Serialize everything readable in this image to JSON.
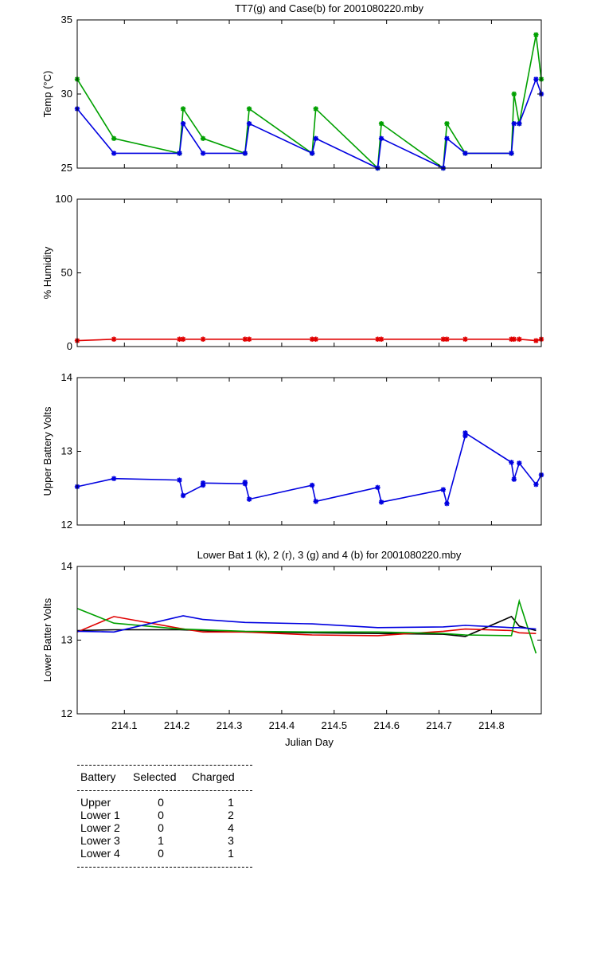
{
  "chart_data": [
    {
      "type": "line",
      "title": "TT7(g) and Case(b) for 2001080220.mby",
      "xlabel": "",
      "ylabel": "Temp  (°C)",
      "xlim": [
        214.01,
        214.895
      ],
      "ylim": [
        25,
        35
      ],
      "yticks": [
        "25",
        "30",
        "35"
      ],
      "markers": true,
      "grid": false,
      "series": [
        {
          "color": "#00a000",
          "x": [
            214.01,
            214.08,
            214.205,
            214.212,
            214.25,
            214.33,
            214.338,
            214.458,
            214.465,
            214.583,
            214.59,
            214.708,
            214.715,
            214.75,
            214.838,
            214.843,
            214.853,
            214.885,
            214.895
          ],
          "y": [
            31,
            27,
            26,
            29,
            27,
            26,
            29,
            26,
            29,
            25,
            28,
            25,
            28,
            26,
            26,
            30,
            28,
            34,
            31
          ]
        },
        {
          "color": "#0000e0",
          "x": [
            214.01,
            214.08,
            214.205,
            214.212,
            214.25,
            214.33,
            214.338,
            214.458,
            214.465,
            214.583,
            214.59,
            214.708,
            214.715,
            214.75,
            214.838,
            214.843,
            214.853,
            214.885,
            214.895
          ],
          "y": [
            29,
            26,
            26,
            28,
            26,
            26,
            28,
            26,
            27,
            25,
            27,
            25,
            27,
            26,
            26,
            28,
            28,
            31,
            30
          ]
        }
      ]
    },
    {
      "type": "line",
      "title": "",
      "xlabel": "",
      "ylabel": "% Humidity",
      "xlim": [
        214.01,
        214.895
      ],
      "ylim": [
        0,
        100
      ],
      "yticks": [
        "0",
        "50",
        "100"
      ],
      "markers": true,
      "grid": false,
      "series": [
        {
          "color": "#e00000",
          "x": [
            214.01,
            214.08,
            214.205,
            214.212,
            214.25,
            214.33,
            214.338,
            214.458,
            214.465,
            214.583,
            214.59,
            214.708,
            214.715,
            214.75,
            214.838,
            214.843,
            214.853,
            214.885,
            214.895
          ],
          "y": [
            4,
            5,
            5,
            5,
            5,
            5,
            5,
            5,
            5,
            5,
            5,
            5,
            5,
            5,
            5,
            5,
            5,
            4,
            5
          ]
        }
      ]
    },
    {
      "type": "line",
      "title": "",
      "xlabel": "",
      "ylabel": "Upper Battery Volts",
      "xlim": [
        214.01,
        214.895
      ],
      "ylim": [
        12,
        14
      ],
      "yticks": [
        "12",
        "13",
        "14"
      ],
      "markers": true,
      "grid": false,
      "series": [
        {
          "color": "#0000e0",
          "x": [
            214.01,
            214.08,
            214.205,
            214.212,
            214.25,
            214.25,
            214.33,
            214.33,
            214.338,
            214.458,
            214.465,
            214.583,
            214.59,
            214.708,
            214.715,
            214.75,
            214.75,
            214.838,
            214.843,
            214.853,
            214.885,
            214.895
          ],
          "y": [
            12.52,
            12.63,
            12.61,
            12.4,
            12.54,
            12.57,
            12.56,
            12.58,
            12.35,
            12.54,
            12.32,
            12.51,
            12.31,
            12.48,
            12.29,
            13.21,
            13.25,
            12.85,
            12.62,
            12.84,
            12.55,
            12.68
          ]
        }
      ]
    },
    {
      "type": "line",
      "title": "Lower Bat 1 (k), 2 (r), 3 (g) and 4 (b) for 2001080220.mby",
      "xlabel": "Julian Day",
      "ylabel": "Lower Batter Volts",
      "xlim": [
        214.01,
        214.895
      ],
      "ylim": [
        12,
        14
      ],
      "yticks": [
        "12",
        "13",
        "14"
      ],
      "xticks": [
        "214.1",
        "214.2",
        "214.3",
        "214.4",
        "214.5",
        "214.6",
        "214.7",
        "214.8"
      ],
      "xtick_values": [
        214.1,
        214.2,
        214.3,
        214.4,
        214.5,
        214.6,
        214.7,
        214.8
      ],
      "markers": false,
      "grid": false,
      "series": [
        {
          "color": "#000000",
          "x": [
            214.01,
            214.08,
            214.205,
            214.33,
            214.458,
            214.583,
            214.708,
            214.75,
            214.838,
            214.853,
            214.885
          ],
          "y": [
            13.13,
            13.14,
            13.14,
            13.11,
            13.1,
            13.09,
            13.08,
            13.05,
            13.32,
            13.19,
            13.13
          ]
        },
        {
          "color": "#e00000",
          "x": [
            214.01,
            214.08,
            214.205,
            214.25,
            214.33,
            214.458,
            214.583,
            214.708,
            214.75,
            214.838,
            214.853,
            214.885
          ],
          "y": [
            13.11,
            13.32,
            13.16,
            13.11,
            13.11,
            13.07,
            13.06,
            13.12,
            13.15,
            13.13,
            13.1,
            13.09
          ]
        },
        {
          "color": "#00a000",
          "x": [
            214.01,
            214.08,
            214.205,
            214.33,
            214.458,
            214.583,
            214.708,
            214.75,
            214.838,
            214.853,
            214.885
          ],
          "y": [
            13.43,
            13.23,
            13.15,
            13.12,
            13.11,
            13.11,
            13.09,
            13.07,
            13.06,
            13.53,
            12.82
          ]
        },
        {
          "color": "#0000e0",
          "x": [
            214.01,
            214.08,
            214.212,
            214.25,
            214.33,
            214.458,
            214.583,
            214.708,
            214.75,
            214.838,
            214.853,
            214.885
          ],
          "y": [
            13.12,
            13.11,
            13.33,
            13.28,
            13.24,
            13.22,
            13.17,
            13.18,
            13.2,
            13.17,
            13.17,
            13.15
          ]
        }
      ]
    }
  ],
  "battery_table": {
    "headers": [
      "Battery",
      "Selected",
      "Charged"
    ],
    "rows": [
      [
        "Upper",
        "0",
        "1"
      ],
      [
        "Lower 1",
        "0",
        "2"
      ],
      [
        "Lower 2",
        "0",
        "4"
      ],
      [
        "Lower 3",
        "1",
        "3"
      ],
      [
        "Lower 4",
        "0",
        "1"
      ]
    ]
  }
}
